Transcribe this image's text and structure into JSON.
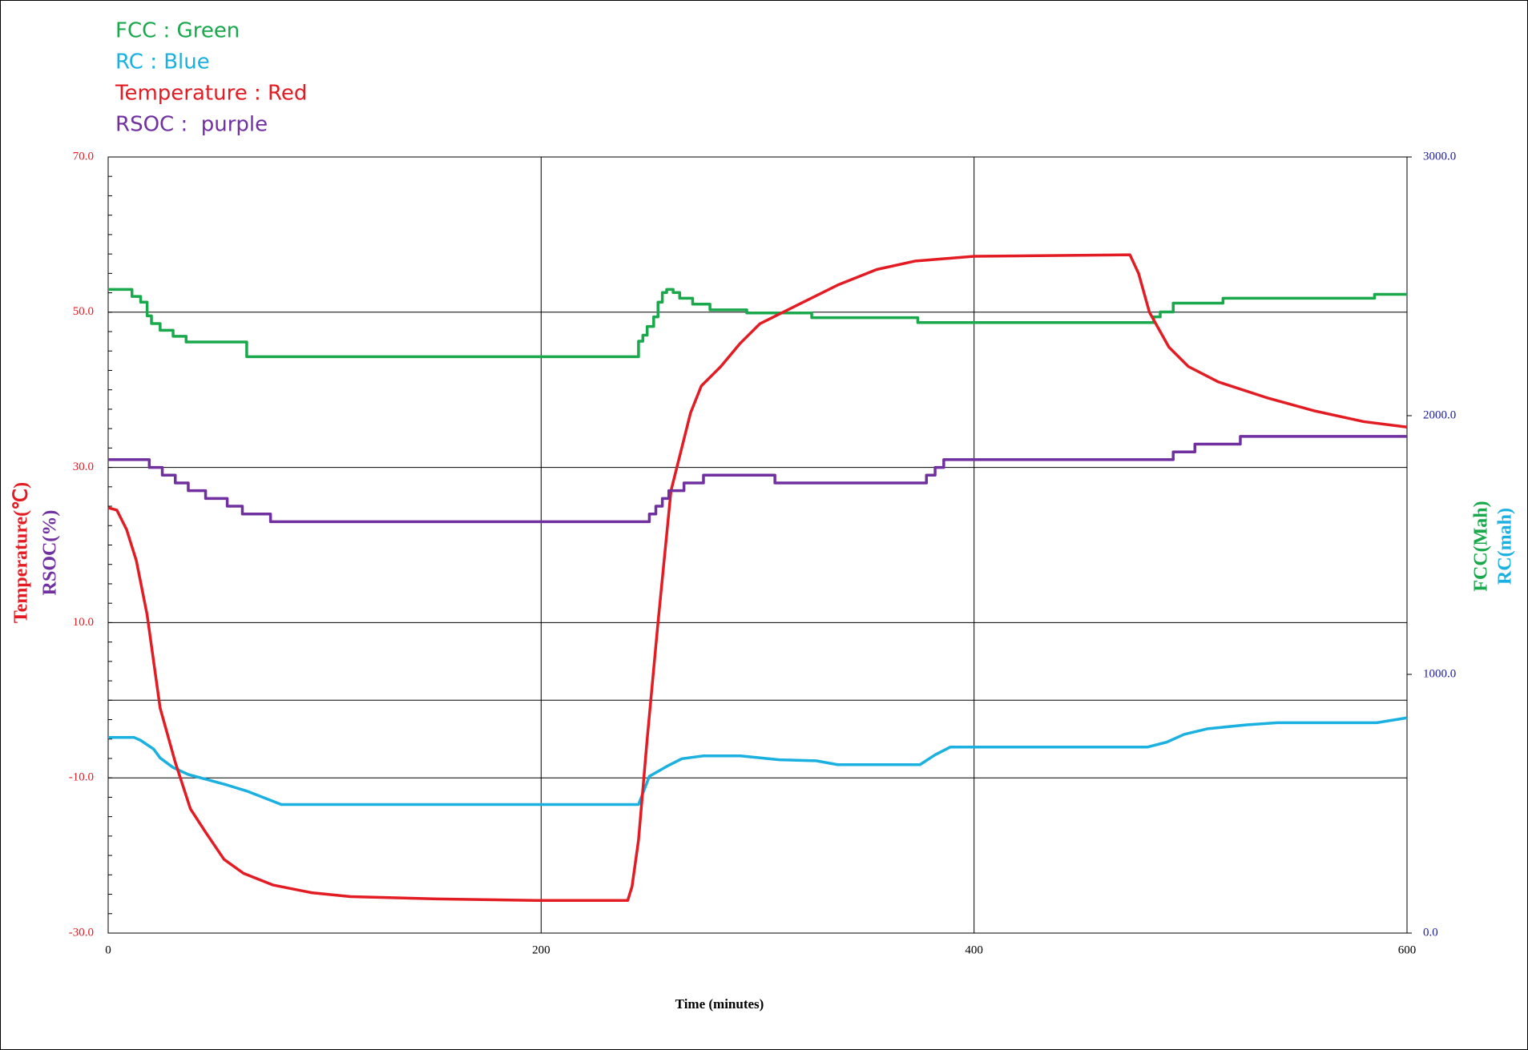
{
  "chart_data": {
    "type": "line",
    "x_label": "Time (minutes)",
    "y_labels": [
      {
        "text": "Temperature(℃)",
        "color": "#e31b23"
      },
      {
        "text": "RSOC(%)",
        "color": "#7030a0"
      }
    ],
    "y2_labels": [
      {
        "text": "FCC(Mah)",
        "color": "#1aa84c"
      },
      {
        "text": "RC(mah)",
        "color": "#1ab0e0"
      }
    ],
    "xlim": [
      0,
      600
    ],
    "xticks": [
      0,
      200,
      400,
      600
    ],
    "ylim": [
      -30,
      70
    ],
    "yticks": [
      {
        "value": -30,
        "label": "-30.0"
      },
      {
        "value": -10,
        "label": "-10.0"
      },
      {
        "value": 10,
        "label": "10.0"
      },
      {
        "value": 30,
        "label": "30.0"
      },
      {
        "value": 50,
        "label": "50.0"
      },
      {
        "value": 70,
        "label": "70.0"
      }
    ],
    "y2lim": [
      0,
      3000
    ],
    "y2ticks": [
      {
        "value": 0,
        "label": "0.0"
      },
      {
        "value": 1000,
        "label": "1000.0"
      },
      {
        "value": 2000,
        "label": "2000.0"
      },
      {
        "value": 3000,
        "label": "3000.0"
      }
    ],
    "grid": true,
    "zero_line": true,
    "series": [
      {
        "name": "FCC : Green",
        "color": "#1aa84c",
        "axis": "y2",
        "x": [
          0,
          11,
          11,
          15,
          15,
          18,
          18,
          20,
          20,
          24,
          24,
          30,
          30,
          36,
          36,
          64,
          64,
          245,
          245,
          247,
          247,
          249,
          249,
          252,
          252,
          254,
          254,
          256,
          256,
          258,
          258,
          261,
          261,
          264,
          264,
          270,
          270,
          278,
          278,
          295,
          295,
          325,
          325,
          374,
          374,
          483,
          483,
          486,
          486,
          492,
          492,
          515,
          515,
          585,
          585,
          600
        ],
        "values": [
          2488,
          2488,
          2461,
          2461,
          2439,
          2439,
          2386,
          2386,
          2356,
          2356,
          2330,
          2330,
          2307,
          2307,
          2285,
          2285,
          2228,
          2228,
          2288,
          2288,
          2311,
          2311,
          2345,
          2345,
          2382,
          2382,
          2439,
          2439,
          2476,
          2476,
          2488,
          2488,
          2476,
          2476,
          2454,
          2454,
          2431,
          2431,
          2409,
          2409,
          2397,
          2397,
          2379,
          2379,
          2360,
          2360,
          2382,
          2382,
          2401,
          2401,
          2435,
          2435,
          2454,
          2454,
          2469,
          2469
        ]
      },
      {
        "name": "RC : Blue",
        "color": "#1ab0e0",
        "axis": "y2",
        "x": [
          0,
          12,
          15,
          21,
          24,
          30,
          37,
          45,
          55,
          64,
          80,
          245,
          250,
          258,
          265,
          275,
          292,
          310,
          327,
          337,
          375,
          382,
          389,
          480,
          489,
          497,
          508,
          526,
          540,
          586,
          600
        ],
        "values": [
          756,
          756,
          745,
          711,
          677,
          640,
          613,
          595,
          572,
          549,
          497,
          497,
          606,
          644,
          674,
          685,
          685,
          670,
          666,
          651,
          651,
          689,
          719,
          719,
          738,
          768,
          790,
          805,
          813,
          813,
          832
        ]
      },
      {
        "name": "Temperature : Red",
        "color": "#e31b23",
        "x": [
          0,
          4,
          8.5,
          13,
          18,
          24,
          31,
          38,
          45,
          53.5,
          62.5,
          76,
          94,
          112,
          152,
          198,
          240,
          242,
          245,
          249,
          254,
          260,
          269,
          274,
          283,
          292,
          301,
          319,
          337,
          355,
          373,
          400,
          472,
          476,
          481,
          490,
          499,
          513,
          535,
          557,
          580,
          600
        ],
        "values": [
          24.8,
          24.5,
          22,
          18,
          11,
          -1,
          -8,
          -14,
          -17,
          -20.5,
          -22.3,
          -23.8,
          -24.8,
          -25.3,
          -25.6,
          -25.8,
          -25.8,
          -24,
          -18,
          -5,
          10,
          27,
          37,
          40.5,
          43,
          46,
          48.5,
          51,
          53.5,
          55.5,
          56.6,
          57.2,
          57.4,
          55,
          50,
          45.5,
          43,
          41,
          39,
          37.3,
          35.9,
          35.2
        ]
      },
      {
        "name": "RSOC :  purple",
        "color": "#7030a0",
        "x": [
          0,
          19,
          19,
          25,
          25,
          31,
          31,
          37,
          37,
          45,
          45,
          55,
          55,
          62,
          62,
          75,
          75,
          250,
          250,
          253,
          253,
          256,
          256,
          259,
          259,
          266,
          266,
          275,
          275,
          308,
          308,
          378,
          378,
          382,
          382,
          386,
          386,
          492,
          492,
          502,
          502,
          523,
          523,
          600
        ],
        "values": [
          31,
          31,
          30,
          30,
          29,
          29,
          28,
          28,
          27,
          27,
          26,
          26,
          25,
          25,
          24,
          24,
          23,
          23,
          24,
          24,
          25,
          25,
          26,
          26,
          27,
          27,
          28,
          28,
          29,
          29,
          28,
          28,
          29,
          29,
          30,
          30,
          31,
          31,
          32,
          32,
          33,
          33,
          34,
          34
        ]
      }
    ]
  }
}
